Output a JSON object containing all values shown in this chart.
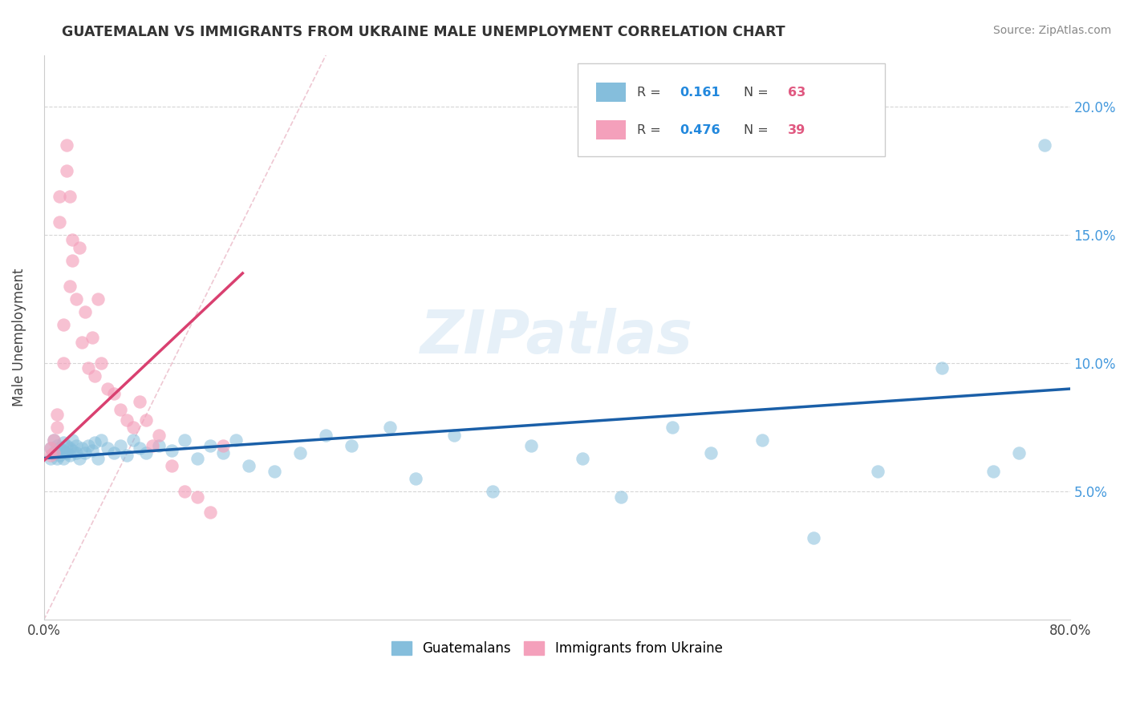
{
  "title": "GUATEMALAN VS IMMIGRANTS FROM UKRAINE MALE UNEMPLOYMENT CORRELATION CHART",
  "source": "Source: ZipAtlas.com",
  "ylabel": "Male Unemployment",
  "xlim": [
    0.0,
    0.8
  ],
  "ylim": [
    0.0,
    0.22
  ],
  "yticks": [
    0.05,
    0.1,
    0.15,
    0.2
  ],
  "ytick_labels": [
    "5.0%",
    "10.0%",
    "15.0%",
    "20.0%"
  ],
  "watermark": "ZIPatlas",
  "color_blue": "#85bedc",
  "color_pink": "#f4a0bb",
  "color_blue_line": "#1a5fa8",
  "color_pink_line": "#d94070",
  "color_diag": "#e8b0c0",
  "guatemalan_x": [
    0.005,
    0.005,
    0.008,
    0.008,
    0.01,
    0.01,
    0.01,
    0.012,
    0.012,
    0.015,
    0.015,
    0.015,
    0.018,
    0.018,
    0.02,
    0.02,
    0.022,
    0.022,
    0.025,
    0.025,
    0.028,
    0.03,
    0.032,
    0.035,
    0.038,
    0.04,
    0.042,
    0.045,
    0.05,
    0.055,
    0.06,
    0.065,
    0.07,
    0.075,
    0.08,
    0.09,
    0.1,
    0.11,
    0.12,
    0.13,
    0.14,
    0.15,
    0.16,
    0.18,
    0.2,
    0.22,
    0.24,
    0.27,
    0.29,
    0.32,
    0.35,
    0.38,
    0.42,
    0.45,
    0.49,
    0.52,
    0.56,
    0.6,
    0.65,
    0.7,
    0.74,
    0.76,
    0.78
  ],
  "guatemalan_y": [
    0.063,
    0.067,
    0.065,
    0.07,
    0.065,
    0.063,
    0.068,
    0.064,
    0.067,
    0.066,
    0.063,
    0.069,
    0.065,
    0.068,
    0.064,
    0.067,
    0.066,
    0.07,
    0.065,
    0.068,
    0.063,
    0.067,
    0.065,
    0.068,
    0.066,
    0.069,
    0.063,
    0.07,
    0.067,
    0.065,
    0.068,
    0.064,
    0.07,
    0.067,
    0.065,
    0.068,
    0.066,
    0.07,
    0.063,
    0.068,
    0.065,
    0.07,
    0.06,
    0.058,
    0.065,
    0.072,
    0.068,
    0.075,
    0.055,
    0.072,
    0.05,
    0.068,
    0.063,
    0.048,
    0.075,
    0.065,
    0.07,
    0.032,
    0.058,
    0.098,
    0.058,
    0.065,
    0.185
  ],
  "ukraine_x": [
    0.005,
    0.005,
    0.008,
    0.008,
    0.01,
    0.01,
    0.012,
    0.012,
    0.015,
    0.015,
    0.018,
    0.018,
    0.02,
    0.02,
    0.022,
    0.022,
    0.025,
    0.028,
    0.03,
    0.032,
    0.035,
    0.038,
    0.04,
    0.042,
    0.045,
    0.05,
    0.055,
    0.06,
    0.065,
    0.07,
    0.075,
    0.08,
    0.085,
    0.09,
    0.1,
    0.11,
    0.12,
    0.13,
    0.14
  ],
  "ukraine_y": [
    0.064,
    0.067,
    0.065,
    0.07,
    0.075,
    0.08,
    0.155,
    0.165,
    0.1,
    0.115,
    0.175,
    0.185,
    0.13,
    0.165,
    0.14,
    0.148,
    0.125,
    0.145,
    0.108,
    0.12,
    0.098,
    0.11,
    0.095,
    0.125,
    0.1,
    0.09,
    0.088,
    0.082,
    0.078,
    0.075,
    0.085,
    0.078,
    0.068,
    0.072,
    0.06,
    0.05,
    0.048,
    0.042,
    0.068
  ],
  "blue_trend_x": [
    0.0,
    0.8
  ],
  "blue_trend_y": [
    0.063,
    0.09
  ],
  "pink_trend_x": [
    0.0,
    0.155
  ],
  "pink_trend_y": [
    0.062,
    0.135
  ],
  "diag_line_x": [
    0.0,
    0.22
  ],
  "diag_line_y": [
    0.0,
    0.22
  ]
}
